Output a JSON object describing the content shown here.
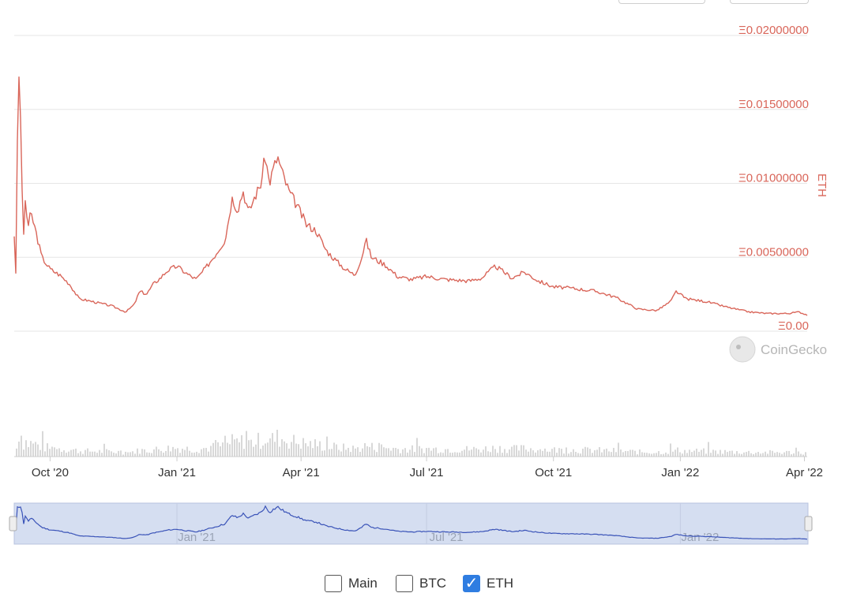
{
  "chart_data": {
    "type": "line",
    "y_axis": {
      "label": "ETH",
      "ticks": [
        "Ξ0.02000000",
        "Ξ0.01500000",
        "Ξ0.01000000",
        "Ξ0.00500000",
        "Ξ0.00"
      ],
      "tick_values": [
        0.02,
        0.015,
        0.01,
        0.005,
        0.0
      ],
      "range": [
        0,
        0.02
      ]
    },
    "x_axis": {
      "ticks": [
        "Oct '20",
        "Jan '21",
        "Apr '21",
        "Jul '21",
        "Oct '21",
        "Jan '22",
        "Apr '22"
      ],
      "tick_dates": [
        "2020-10-01",
        "2021-01-01",
        "2021-04-01",
        "2021-07-01",
        "2021-10-01",
        "2022-01-01",
        "2022-04-01"
      ],
      "range": [
        "2020-09-05",
        "2022-04-03"
      ]
    },
    "series": [
      {
        "color": "#d9665a",
        "points": [
          [
            "2020-09-05",
            0.0065
          ],
          [
            "2020-09-06",
            0.003
          ],
          [
            "2020-09-07",
            0.01
          ],
          [
            "2020-09-08",
            0.0184
          ],
          [
            "2020-09-09",
            0.016
          ],
          [
            "2020-09-10",
            0.013
          ],
          [
            "2020-09-11",
            0.0085
          ],
          [
            "2020-09-12",
            0.006
          ],
          [
            "2020-09-13",
            0.0089
          ],
          [
            "2020-09-15",
            0.007
          ],
          [
            "2020-09-17",
            0.008
          ],
          [
            "2020-09-20",
            0.007
          ],
          [
            "2020-09-25",
            0.005
          ],
          [
            "2020-10-01",
            0.0042
          ],
          [
            "2020-10-08",
            0.0038
          ],
          [
            "2020-10-15",
            0.0032
          ],
          [
            "2020-10-22",
            0.0022
          ],
          [
            "2020-11-01",
            0.002
          ],
          [
            "2020-11-15",
            0.0017
          ],
          [
            "2020-11-25",
            0.0013
          ],
          [
            "2020-12-01",
            0.0018
          ],
          [
            "2020-12-05",
            0.0027
          ],
          [
            "2020-12-10",
            0.0025
          ],
          [
            "2020-12-15",
            0.0032
          ],
          [
            "2020-12-20",
            0.0036
          ],
          [
            "2020-12-25",
            0.0041
          ],
          [
            "2021-01-01",
            0.0044
          ],
          [
            "2021-01-08",
            0.0039
          ],
          [
            "2021-01-15",
            0.0035
          ],
          [
            "2021-01-22",
            0.0043
          ],
          [
            "2021-01-29",
            0.0052
          ],
          [
            "2021-02-05",
            0.0062
          ],
          [
            "2021-02-10",
            0.009
          ],
          [
            "2021-02-14",
            0.0082
          ],
          [
            "2021-02-18",
            0.0095
          ],
          [
            "2021-02-22",
            0.008
          ],
          [
            "2021-02-26",
            0.009
          ],
          [
            "2021-03-03",
            0.01
          ],
          [
            "2021-03-06",
            0.0119
          ],
          [
            "2021-03-09",
            0.01
          ],
          [
            "2021-03-12",
            0.011
          ],
          [
            "2021-03-15",
            0.0118
          ],
          [
            "2021-03-18",
            0.0108
          ],
          [
            "2021-03-23",
            0.0095
          ],
          [
            "2021-03-29",
            0.0085
          ],
          [
            "2021-04-05",
            0.0072
          ],
          [
            "2021-04-12",
            0.0068
          ],
          [
            "2021-04-19",
            0.0055
          ],
          [
            "2021-04-26",
            0.0048
          ],
          [
            "2021-05-03",
            0.0042
          ],
          [
            "2021-05-10",
            0.0038
          ],
          [
            "2021-05-15",
            0.005
          ],
          [
            "2021-05-18",
            0.0062
          ],
          [
            "2021-05-22",
            0.005
          ],
          [
            "2021-06-01",
            0.0045
          ],
          [
            "2021-06-10",
            0.0037
          ],
          [
            "2021-06-20",
            0.0035
          ],
          [
            "2021-07-01",
            0.0037
          ],
          [
            "2021-07-15",
            0.0035
          ],
          [
            "2021-08-01",
            0.0034
          ],
          [
            "2021-08-10",
            0.0036
          ],
          [
            "2021-08-20",
            0.0044
          ],
          [
            "2021-09-01",
            0.0036
          ],
          [
            "2021-09-10",
            0.004
          ],
          [
            "2021-09-20",
            0.0034
          ],
          [
            "2021-10-01",
            0.003
          ],
          [
            "2021-10-15",
            0.0029
          ],
          [
            "2021-11-01",
            0.0027
          ],
          [
            "2021-11-15",
            0.0023
          ],
          [
            "2021-12-01",
            0.0015
          ],
          [
            "2021-12-15",
            0.0014
          ],
          [
            "2021-12-25",
            0.002
          ],
          [
            "2021-12-29",
            0.0027
          ],
          [
            "2022-01-05",
            0.0022
          ],
          [
            "2022-01-20",
            0.002
          ],
          [
            "2022-02-05",
            0.0016
          ],
          [
            "2022-02-20",
            0.0013
          ],
          [
            "2022-03-05",
            0.0012
          ],
          [
            "2022-03-20",
            0.0012
          ],
          [
            "2022-03-28",
            0.0013
          ],
          [
            "2022-04-03",
            0.0011
          ]
        ]
      }
    ],
    "volume_note": "grey volume bars below line",
    "grid": true
  },
  "navigator": {
    "ticks": [
      "Jan '21",
      "Jul '21",
      "Jan '22"
    ],
    "tick_dates": [
      "2021-01-01",
      "2021-07-01",
      "2022-01-01"
    ],
    "line_color": "#3a53b8",
    "fill_color": "#d5def1"
  },
  "brand": {
    "name": "CoinGecko",
    "icon": "gecko-icon"
  },
  "legend": {
    "items": [
      {
        "label": "Main",
        "checked": false
      },
      {
        "label": "BTC",
        "checked": false
      },
      {
        "label": "ETH",
        "checked": true
      }
    ]
  },
  "colors": {
    "line": "#d9665a",
    "volume": "#d8d8d8",
    "grid": "#e6e6e6",
    "check_accent": "#2f7de1"
  }
}
